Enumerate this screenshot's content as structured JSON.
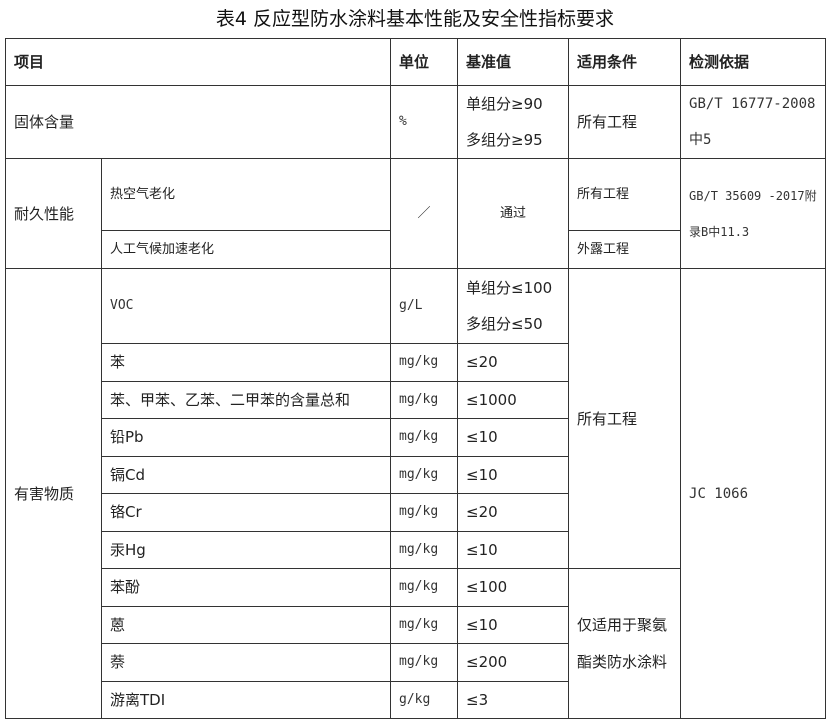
{
  "title": "表4 反应型防水涂料基本性能及安全性指标要求",
  "headers": [
    "项目",
    "单位",
    "基准值",
    "适用条件",
    "检测依据"
  ],
  "solid": {
    "item": "固体含量",
    "unit": "%",
    "value1": "单组分≥90",
    "value2": "多组分≥95",
    "condition": "所有工程",
    "standard": "GB/T 16777-2008中5"
  },
  "durability": {
    "item": "耐久性能",
    "sub1": "热空气老化",
    "sub2": "人工气候加速老化",
    "unit": "／",
    "value": "通过",
    "condition1": "所有工程",
    "condition2": "外露工程",
    "standard": "GB/T 35609 -2017附录B中11.3"
  },
  "harmful": {
    "item": "有害物质",
    "condition_all": "所有工程",
    "condition_pu": "仅适用于聚氨酯类防水涂料",
    "standard": "JC 1066",
    "voc": {
      "name": "VOC",
      "unit": "g/L",
      "value1": "单组分≤100",
      "value2": "多组分≤50"
    },
    "rows": [
      {
        "name": "苯",
        "unit": "mg/kg",
        "value": "≤20"
      },
      {
        "name": "苯、甲苯、乙苯、二甲苯的含量总和",
        "unit": "mg/kg",
        "value": "≤1000"
      },
      {
        "name": "铅Pb",
        "unit": "mg/kg",
        "value": "≤10"
      },
      {
        "name": "镉Cd",
        "unit": "mg/kg",
        "value": "≤10"
      },
      {
        "name": "铬Cr",
        "unit": "mg/kg",
        "value": "≤20"
      },
      {
        "name": "汞Hg",
        "unit": "mg/kg",
        "value": "≤10"
      },
      {
        "name": "苯酚",
        "unit": "mg/kg",
        "value": "≤100"
      },
      {
        "name": "蒽",
        "unit": "mg/kg",
        "value": "≤10"
      },
      {
        "name": "萘",
        "unit": "mg/kg",
        "value": "≤200"
      },
      {
        "name": "游离TDI",
        "unit": "g/kg",
        "value": "≤3"
      }
    ]
  }
}
